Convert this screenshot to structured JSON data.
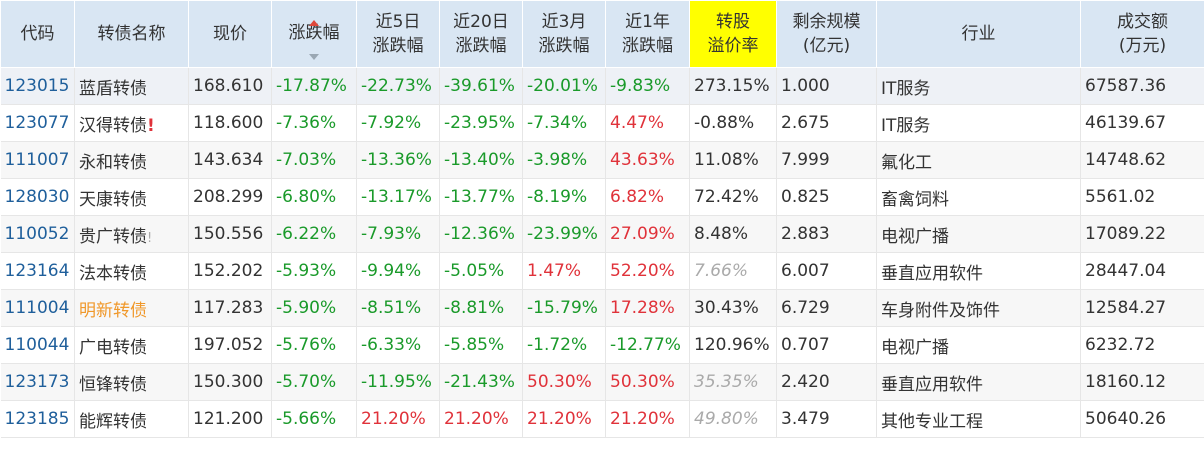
{
  "headers": {
    "code": "代码",
    "name": "转债名称",
    "price": "现价",
    "change": "涨跌幅",
    "chg5d_1": "近5日",
    "chg5d_2": "涨跌幅",
    "chg20d_1": "近20日",
    "chg20d_2": "涨跌幅",
    "chg3m_1": "近3月",
    "chg3m_2": "涨跌幅",
    "chg1y_1": "近1年",
    "chg1y_2": "涨跌幅",
    "premium_1": "转股",
    "premium_2": "溢价率",
    "remaining_1": "剩余规模",
    "remaining_2": "(亿元)",
    "industry": "行业",
    "volume_1": "成交额",
    "volume_2": "(万元)"
  },
  "sort": {
    "column": "涨跌幅",
    "direction": "descending"
  },
  "colors": {
    "header_bg": "#d9e6f3",
    "highlight": "#ffff00",
    "down": "#1a9a2a",
    "up": "#e0323a",
    "code": "#1f5f9b"
  },
  "rows": [
    {
      "code": "123015",
      "name": "蓝盾转债",
      "flag": "",
      "price": "168.610",
      "change": "-17.87%",
      "chg5d": "-22.73%",
      "chg20d": "-39.61%",
      "chg3m": "-20.01%",
      "chg1y": "-9.83%",
      "premium": "273.15%",
      "remaining": "1.000",
      "industry": "IT服务",
      "volume": "67587.36"
    },
    {
      "code": "123077",
      "name": "汉得转债",
      "flag": "!",
      "price": "118.600",
      "change": "-7.36%",
      "chg5d": "-7.92%",
      "chg20d": "-23.95%",
      "chg3m": "-7.34%",
      "chg1y": "4.47%",
      "premium": "-0.88%",
      "remaining": "2.675",
      "industry": "IT服务",
      "volume": "46139.67"
    },
    {
      "code": "111007",
      "name": "永和转债",
      "flag": "",
      "price": "143.634",
      "change": "-7.03%",
      "chg5d": "-13.36%",
      "chg20d": "-13.40%",
      "chg3m": "-3.98%",
      "chg1y": "43.63%",
      "premium": "11.08%",
      "remaining": "7.999",
      "industry": "氟化工",
      "volume": "14748.62"
    },
    {
      "code": "128030",
      "name": "天康转债",
      "flag": "",
      "price": "208.299",
      "change": "-6.80%",
      "chg5d": "-13.17%",
      "chg20d": "-13.77%",
      "chg3m": "-8.19%",
      "chg1y": "6.82%",
      "premium": "72.42%",
      "remaining": "0.825",
      "industry": "畜禽饲料",
      "volume": "5561.02"
    },
    {
      "code": "110052",
      "name": "贵广转债",
      "flag": "!",
      "price": "150.556",
      "change": "-6.22%",
      "chg5d": "-7.93%",
      "chg20d": "-12.36%",
      "chg3m": "-23.99%",
      "chg1y": "27.09%",
      "premium": "8.48%",
      "remaining": "2.883",
      "industry": "电视广播",
      "volume": "17089.22"
    },
    {
      "code": "123164",
      "name": "法本转债",
      "flag": "",
      "price": "152.202",
      "change": "-5.93%",
      "chg5d": "-9.94%",
      "chg20d": "-5.05%",
      "chg3m": "1.47%",
      "chg1y": "52.20%",
      "premium": "7.66%",
      "remaining": "6.007",
      "industry": "垂直应用软件",
      "volume": "28447.04"
    },
    {
      "code": "111004",
      "name": "明新转债",
      "flag": "",
      "price": "117.283",
      "change": "-5.90%",
      "chg5d": "-8.51%",
      "chg20d": "-8.81%",
      "chg3m": "-15.79%",
      "chg1y": "17.28%",
      "premium": "30.43%",
      "remaining": "6.729",
      "industry": "车身附件及饰件",
      "volume": "12584.27"
    },
    {
      "code": "110044",
      "name": "广电转债",
      "flag": "",
      "price": "197.052",
      "change": "-5.76%",
      "chg5d": "-6.33%",
      "chg20d": "-5.85%",
      "chg3m": "-1.72%",
      "chg1y": "-12.77%",
      "premium": "120.96%",
      "remaining": "0.707",
      "industry": "电视广播",
      "volume": "6232.72"
    },
    {
      "code": "123173",
      "name": "恒锋转债",
      "flag": "",
      "price": "150.300",
      "change": "-5.70%",
      "chg5d": "-11.95%",
      "chg20d": "-21.43%",
      "chg3m": "50.30%",
      "chg1y": "50.30%",
      "premium": "35.35%",
      "remaining": "2.420",
      "industry": "垂直应用软件",
      "volume": "18160.12"
    },
    {
      "code": "123185",
      "name": "能辉转债",
      "flag": "",
      "price": "121.200",
      "change": "-5.66%",
      "chg5d": "21.20%",
      "chg20d": "21.20%",
      "chg3m": "21.20%",
      "chg1y": "21.20%",
      "premium": "49.80%",
      "remaining": "3.479",
      "industry": "其他专业工程",
      "volume": "50640.26"
    }
  ]
}
